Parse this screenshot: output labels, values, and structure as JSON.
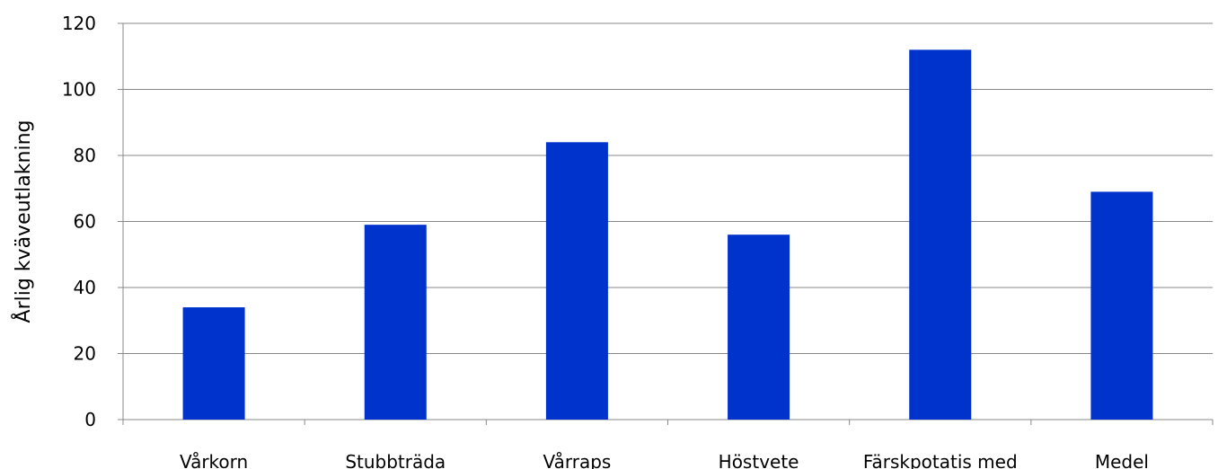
{
  "chart_data": {
    "type": "bar",
    "title": "",
    "xlabel": "",
    "ylabel": "Årlig kväveutlakning",
    "categories": [
      "Vårkorn",
      "Stubbträda",
      "Vårraps",
      "Höstvete",
      "Färskpotatis med",
      "Medel"
    ],
    "values": [
      34,
      59,
      84,
      56,
      112,
      69
    ],
    "ylim": [
      0,
      120
    ],
    "yticks": [
      0,
      20,
      40,
      60,
      80,
      100,
      120
    ],
    "grid": true,
    "legend": "none",
    "colors": {
      "bar": "#0033cc",
      "grid": "#888888",
      "axis": "#888888"
    }
  }
}
